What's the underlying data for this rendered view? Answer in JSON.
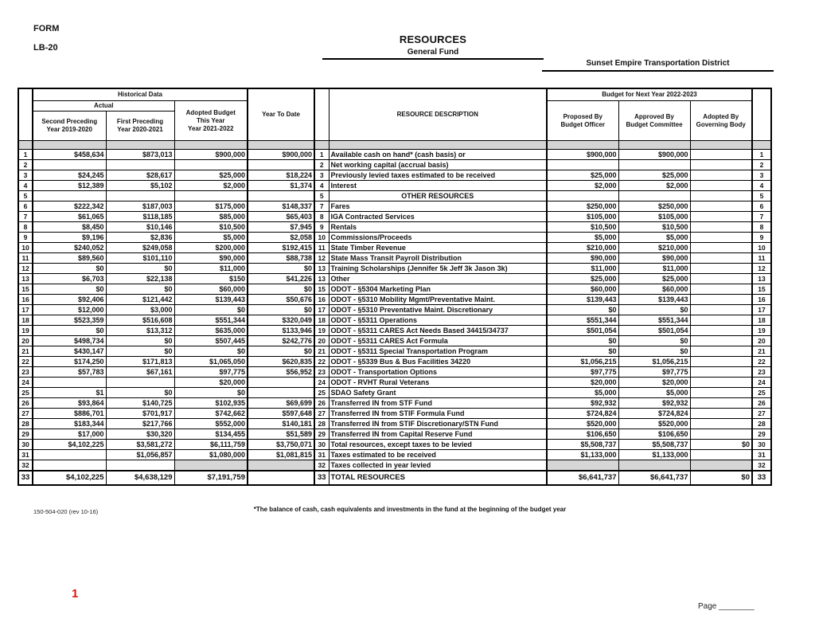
{
  "colors": {
    "paper": "#ffffff",
    "ink": "#111111",
    "band_gray": "#d4d4d4",
    "accent_red": "#e01010"
  },
  "form": {
    "form_label": "FORM",
    "form_number": "LB-20",
    "title": "RESOURCES",
    "subtitle": "General Fund",
    "district": "Sunset Empire Transportation District",
    "form_code": "150-504-020 (rev 10-16)",
    "footnote": "*The balance of cash, cash equivalents and investments in the fund at the beginning of the budget year",
    "red_page_number": "1",
    "page_label": "Page ________"
  },
  "header": {
    "historical_data": "Historical Data",
    "actual": "Actual",
    "second_preceding": "Second Preceding\nYear 2019-2020",
    "first_preceding": "First Preceding\nYear 2020-2021",
    "adopted_budget": "Adopted Budget\nThis Year\nYear 2021-2022",
    "year_to_date": "Year To Date",
    "resource_description": "RESOURCE DESCRIPTION",
    "budget_next_year": "Budget for Next Year 2022-2023",
    "proposed_by": "Proposed By\nBudget Officer",
    "approved_by": "Approved By\nBudget Committee",
    "adopted_by": "Adopted By\nGoverning Body"
  },
  "rows": [
    {
      "ln": "1",
      "c1": "$458,634",
      "c2": "$873,013",
      "c3": "$900,000",
      "ytd": "$900,000",
      "mn": "1",
      "desc": "Available cash on hand* (cash basis) or",
      "prop": "$900,000",
      "appr": "$900,000",
      "adopt": "",
      "rn": "1"
    },
    {
      "ln": "2",
      "c1": "",
      "c2": "",
      "c3": "",
      "ytd": "",
      "mn": "2",
      "desc": "Net working capital (accrual basis)",
      "prop": "",
      "appr": "",
      "adopt": "",
      "rn": "2"
    },
    {
      "ln": "3",
      "c1": "$24,245",
      "c2": "$28,617",
      "c3": "$25,000",
      "ytd": "$18,224",
      "mn": "3",
      "desc": "Previously levied taxes estimated to be received",
      "prop": "$25,000",
      "appr": "$25,000",
      "adopt": "",
      "rn": "3"
    },
    {
      "ln": "4",
      "c1": "$12,389",
      "c2": "$5,102",
      "c3": "$2,000",
      "ytd": "$1,374",
      "mn": "4",
      "desc": "Interest",
      "prop": "$2,000",
      "appr": "$2,000",
      "adopt": "",
      "rn": "4"
    },
    {
      "ln": "5",
      "c1": "",
      "c2": "",
      "c3": "",
      "ytd": "",
      "mn": "5",
      "desc": "OTHER RESOURCES",
      "section": true,
      "prop": "",
      "appr": "",
      "adopt": "",
      "rn": "5"
    },
    {
      "ln": "6",
      "c1": "$222,342",
      "c2": "$187,003",
      "c3": "$175,000",
      "ytd": "$148,337",
      "mn": "7",
      "desc": "Fares",
      "prop": "$250,000",
      "appr": "$250,000",
      "adopt": "",
      "rn": "6"
    },
    {
      "ln": "7",
      "c1": "$61,065",
      "c2": "$118,185",
      "c3": "$85,000",
      "ytd": "$65,403",
      "mn": "8",
      "desc": "IGA Contracted Services",
      "prop": "$105,000",
      "appr": "$105,000",
      "adopt": "",
      "rn": "7"
    },
    {
      "ln": "8",
      "c1": "$8,450",
      "c2": "$10,146",
      "c3": "$10,500",
      "ytd": "$7,945",
      "mn": "9",
      "desc": "Rentals",
      "prop": "$10,500",
      "appr": "$10,500",
      "adopt": "",
      "rn": "8"
    },
    {
      "ln": "9",
      "c1": "$9,196",
      "c2": "$2,836",
      "c3": "$5,000",
      "ytd": "$2,058",
      "mn": "10",
      "desc": "Commissions/Proceeds",
      "prop": "$5,000",
      "appr": "$5,000",
      "adopt": "",
      "rn": "9"
    },
    {
      "ln": "10",
      "c1": "$240,052",
      "c2": "$249,058",
      "c3": "$200,000",
      "ytd": "$192,415",
      "mn": "11",
      "desc": "State Timber Revenue",
      "prop": "$210,000",
      "appr": "$210,000",
      "adopt": "",
      "rn": "10"
    },
    {
      "ln": "11",
      "c1": "$89,560",
      "c2": "$101,110",
      "c3": "$90,000",
      "ytd": "$88,738",
      "mn": "12",
      "desc": "State Mass Transit Payroll Distribution",
      "prop": "$90,000",
      "appr": "$90,000",
      "adopt": "",
      "rn": "11"
    },
    {
      "ln": "12",
      "c1": "$0",
      "c2": "$0",
      "c3": "$11,000",
      "ytd": "$0",
      "mn": "13",
      "desc": "Training Scholarships (Jennifer 5k Jeff 3k Jason 3k)",
      "prop": "$11,000",
      "appr": "$11,000",
      "adopt": "",
      "rn": "12"
    },
    {
      "ln": "13",
      "c1": "$6,703",
      "c2": "$22,138",
      "c3": "$150",
      "ytd": "$41,226",
      "mn": "13",
      "desc": "Other",
      "prop": "$25,000",
      "appr": "$25,000",
      "adopt": "",
      "rn": "13"
    },
    {
      "ln": "15",
      "c1": "$0",
      "c2": "$0",
      "c3": "$60,000",
      "ytd": "$0",
      "mn": "15",
      "desc": "ODOT - §5304 Marketing Plan",
      "prop": "$60,000",
      "appr": "$60,000",
      "adopt": "",
      "rn": "15"
    },
    {
      "ln": "16",
      "c1": "$92,406",
      "c2": "$121,442",
      "c3": "$139,443",
      "ytd": "$50,676",
      "mn": "16",
      "desc": "ODOT - §5310 Mobility Mgmt/Preventative Maint.",
      "prop": "$139,443",
      "appr": "$139,443",
      "adopt": "",
      "rn": "16"
    },
    {
      "ln": "17",
      "c1": "$12,000",
      "c2": "$3,000",
      "c3": "$0",
      "ytd": "$0",
      "mn": "17",
      "desc": "ODOT - §5310 Preventative Maint. Discretionary",
      "prop": "$0",
      "appr": "$0",
      "adopt": "",
      "rn": "17"
    },
    {
      "ln": "18",
      "c1": "$523,359",
      "c2": "$516,608",
      "c3": "$551,344",
      "ytd": "$320,049",
      "mn": "18",
      "desc": "ODOT - §5311 Operations",
      "prop": "$551,344",
      "appr": "$551,344",
      "adopt": "",
      "rn": "18"
    },
    {
      "ln": "19",
      "c1": "$0",
      "c2": "$13,312",
      "c3": "$635,000",
      "ytd": "$133,946",
      "mn": "19",
      "desc": "ODOT - §5311 CARES Act Needs Based 34415/34737",
      "prop": "$501,054",
      "appr": "$501,054",
      "adopt": "",
      "rn": "19"
    },
    {
      "ln": "20",
      "c1": "$498,734",
      "c2": "$0",
      "c3": "$507,445",
      "ytd": "$242,776",
      "mn": "20",
      "desc": "ODOT - §5311 CARES Act Formula",
      "prop": "$0",
      "appr": "$0",
      "adopt": "",
      "rn": "20"
    },
    {
      "ln": "21",
      "c1": "$430,147",
      "c2": "$0",
      "c3": "$0",
      "ytd": "$0",
      "mn": "21",
      "desc": "ODOT - §5311 Special Transportation Program",
      "prop": "$0",
      "appr": "$0",
      "adopt": "",
      "rn": "21"
    },
    {
      "ln": "22",
      "c1": "$174,250",
      "c2": "$171,813",
      "c3": "$1,065,050",
      "ytd": "$620,835",
      "mn": "22",
      "desc": "ODOT - §5339 Bus & Bus Facilities 34220",
      "prop": "$1,056,215",
      "appr": "$1,056,215",
      "adopt": "",
      "rn": "22"
    },
    {
      "ln": "23",
      "c1": "$57,783",
      "c2": "$67,161",
      "c3": "$97,775",
      "ytd": "$56,952",
      "mn": "23",
      "desc": "ODOT - Transportation Options",
      "prop": "$97,775",
      "appr": "$97,775",
      "adopt": "",
      "rn": "23"
    },
    {
      "ln": "24",
      "c1": "",
      "c2": "",
      "c3": "$20,000",
      "ytd": "",
      "mn": "24",
      "desc": "ODOT - RVHT Rural Veterans",
      "prop": "$20,000",
      "appr": "$20,000",
      "adopt": "",
      "rn": "24"
    },
    {
      "ln": "25",
      "c1": "$1",
      "c2": "$0",
      "c3": "$0",
      "ytd": "",
      "mn": "25",
      "desc": "SDAO Safety Grant",
      "prop": "$5,000",
      "appr": "$5,000",
      "adopt": "",
      "rn": "25"
    },
    {
      "ln": "26",
      "c1": "$93,864",
      "c2": "$140,725",
      "c3": "$102,935",
      "ytd": "$69,699",
      "mn": "26",
      "desc": "Transferred IN from STF Fund",
      "prop": "$92,932",
      "appr": "$92,932",
      "adopt": "",
      "rn": "26"
    },
    {
      "ln": "27",
      "c1": "$886,701",
      "c2": "$701,917",
      "c3": "$742,662",
      "ytd": "$597,648",
      "mn": "27",
      "desc": "Transferred IN from STIF Formula Fund",
      "prop": "$724,824",
      "appr": "$724,824",
      "adopt": "",
      "rn": "27"
    },
    {
      "ln": "28",
      "c1": "$183,344",
      "c2": "$217,766",
      "c3": "$552,000",
      "ytd": "$140,181",
      "mn": "28",
      "desc": "Transferred IN from STIF Discretionary/STN Fund",
      "prop": "$520,000",
      "appr": "$520,000",
      "adopt": "",
      "rn": "28"
    },
    {
      "ln": "29",
      "c1": "$17,000",
      "c2": "$30,320",
      "c3": "$134,455",
      "ytd": "$51,589",
      "mn": "29",
      "desc": "Transferred IN from Capital Reserve Fund",
      "prop": "$106,650",
      "appr": "$106,650",
      "adopt": "",
      "rn": "29"
    },
    {
      "ln": "30",
      "c1": "$4,102,225",
      "c2": "$3,581,272",
      "c3": "$6,111,759",
      "ytd": "$3,750,071",
      "mn": "30",
      "desc": "Total resources, except taxes to be levied",
      "prop": "$5,508,737",
      "appr": "$5,508,737",
      "adopt": "$0",
      "rn": "30"
    },
    {
      "ln": "31",
      "c1": "",
      "c2": "$1,056,857",
      "c3": "$1,080,000",
      "ytd": "$1,081,815",
      "mn": "31",
      "desc": "Taxes estimated to be received",
      "prop": "$1,133,000",
      "appr": "$1,133,000",
      "adopt": "",
      "rn": "31"
    },
    {
      "ln": "32",
      "c1": "",
      "c2": "",
      "c3": "",
      "ytd": "",
      "mn": "32",
      "desc": "Taxes collected in year levied",
      "prop": "",
      "appr": "",
      "adopt": "",
      "rn": "32",
      "shade": [
        "c3",
        "ytd",
        "prop",
        "appr",
        "adopt"
      ]
    },
    {
      "ln": "33",
      "c1": "$4,102,225",
      "c2": "$4,638,129",
      "c3": "$7,191,759",
      "ytd": "",
      "mn": "33",
      "desc": "TOTAL RESOURCES",
      "prop": "$6,641,737",
      "appr": "$6,641,737",
      "adopt": "$0",
      "rn": "33",
      "total": true
    }
  ]
}
